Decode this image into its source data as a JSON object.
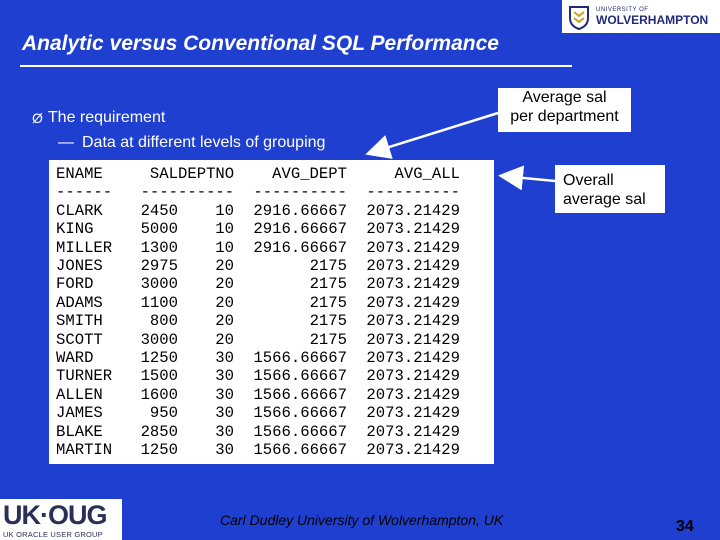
{
  "slide": {
    "title": "Analytic versus Conventional SQL Performance",
    "bullet_marker": "Ø",
    "bullet": "The requirement",
    "sub_bullet_dash": "—",
    "sub_bullet": "Data at different levels of grouping",
    "callout_dept": [
      "Average sal",
      "per department"
    ],
    "callout_all": [
      "Overall",
      "average sal"
    ],
    "footer": "Carl Dudley   University of Wolverhampton, UK",
    "page_number": "34"
  },
  "logos": {
    "uw_small": "UNIVERSITY OF",
    "uw_big": "WOLVERHAMPTON",
    "ukoug_big": "UK·OUG",
    "ukoug_small": "UK ORACLE USER GROUP"
  },
  "table": {
    "headers": [
      "ENAME",
      "SAL",
      "DEPTNO",
      "AVG_DEPT",
      "AVG_ALL"
    ],
    "separators": [
      "------",
      "----",
      "------",
      "----------",
      "----------"
    ],
    "rows": [
      [
        "CLARK",
        "2450",
        "10",
        "2916.66667",
        "2073.21429"
      ],
      [
        "KING",
        "5000",
        "10",
        "2916.66667",
        "2073.21429"
      ],
      [
        "MILLER",
        "1300",
        "10",
        "2916.66667",
        "2073.21429"
      ],
      [
        "JONES",
        "2975",
        "20",
        "2175",
        "2073.21429"
      ],
      [
        "FORD",
        "3000",
        "20",
        "2175",
        "2073.21429"
      ],
      [
        "ADAMS",
        "1100",
        "20",
        "2175",
        "2073.21429"
      ],
      [
        "SMITH",
        "800",
        "20",
        "2175",
        "2073.21429"
      ],
      [
        "SCOTT",
        "3000",
        "20",
        "2175",
        "2073.21429"
      ],
      [
        "WARD",
        "1250",
        "30",
        "1566.66667",
        "2073.21429"
      ],
      [
        "TURNER",
        "1500",
        "30",
        "1566.66667",
        "2073.21429"
      ],
      [
        "ALLEN",
        "1600",
        "30",
        "1566.66667",
        "2073.21429"
      ],
      [
        "JAMES",
        "950",
        "30",
        "1566.66667",
        "2073.21429"
      ],
      [
        "BLAKE",
        "2850",
        "30",
        "1566.66667",
        "2073.21429"
      ],
      [
        "MARTIN",
        "1250",
        "30",
        "1566.66667",
        "2073.21429"
      ]
    ]
  },
  "colors": {
    "background": "#1f3fd0",
    "text_on_background": "#ffffff",
    "panel": "#ffffff"
  }
}
